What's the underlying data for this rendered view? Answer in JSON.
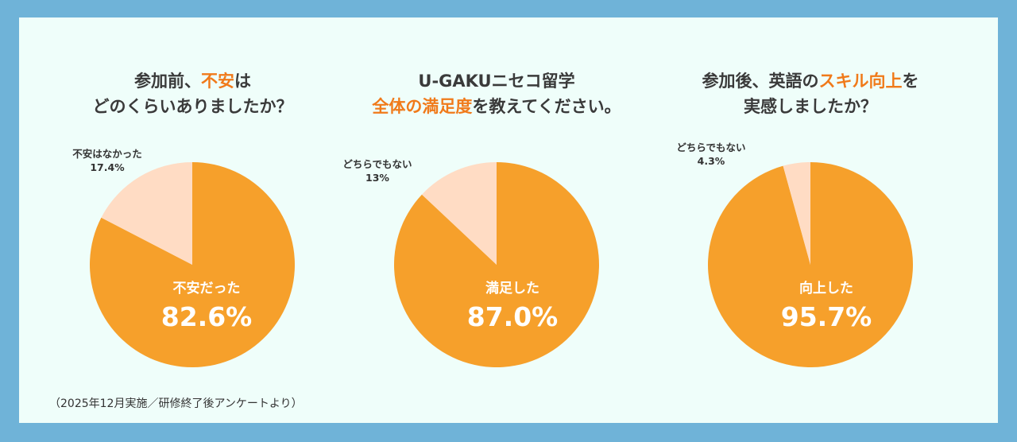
{
  "colors": {
    "background": "#6fb3d8",
    "panel": "#effefa",
    "accent": "#f07a1a",
    "main_slice": "#f6a02b",
    "minor_slice": "#ffdcc4"
  },
  "chart_data": [
    {
      "type": "pie",
      "title": [
        [
          {
            "t": "参加前、",
            "h": false
          },
          {
            "t": "不安",
            "h": true
          },
          {
            "t": "は",
            "h": false
          }
        ],
        [
          {
            "t": "どのくらいありましたか？",
            "h": false
          }
        ]
      ],
      "slices": [
        {
          "label": "不安だった",
          "value": 82.6,
          "display": "82.6%"
        },
        {
          "label": "不安はなかった",
          "value": 17.4,
          "display": "17.4%"
        }
      ]
    },
    {
      "type": "pie",
      "title": [
        [
          {
            "t": "U-GAKUニセコ留学",
            "h": false
          }
        ],
        [
          {
            "t": "全体の満足度",
            "h": true
          },
          {
            "t": "を教えてください。",
            "h": false
          }
        ]
      ],
      "slices": [
        {
          "label": "満足した",
          "value": 87.0,
          "display": "87.0%"
        },
        {
          "label": "どちらでもない",
          "value": 13,
          "display": "13%"
        }
      ]
    },
    {
      "type": "pie",
      "title": [
        [
          {
            "t": "参加後、英語の",
            "h": false
          },
          {
            "t": "スキル向上",
            "h": true
          },
          {
            "t": "を",
            "h": false
          }
        ],
        [
          {
            "t": "実感しましたか？",
            "h": false
          }
        ]
      ],
      "slices": [
        {
          "label": "向上した",
          "value": 95.7,
          "display": "95.7%"
        },
        {
          "label": "どちらでもない",
          "value": 4.3,
          "display": "4.3%"
        }
      ]
    }
  ],
  "footnote": "（2025年12月実施／研修終了後アンケートより）"
}
